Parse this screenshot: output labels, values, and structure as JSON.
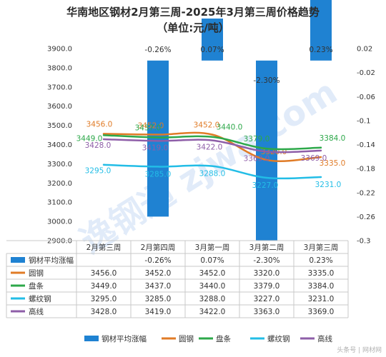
{
  "title": "华南地区钢材2月第三周-2025年3月第三周价格趋势",
  "subtitle": "（单位:元/吨）",
  "footer": "头条号 | 网材网",
  "watermark": "逸钢通 zjwa.com",
  "colors": {
    "avg_change": "#1f82d2",
    "round_steel": "#e07b26",
    "wire_coil": "#2da84a",
    "rebar": "#22bde6",
    "high_wire": "#8e5ea8",
    "text": "#333333"
  },
  "chart_data": {
    "type": "line",
    "categories": [
      "2月第三周",
      "2月第四周",
      "3月第一周",
      "3月第二周",
      "3月第三周"
    ],
    "y_left": {
      "ylim": [
        2900,
        3900
      ],
      "ticks": [
        "2900.0",
        "3000.0",
        "3100.0",
        "3200.0",
        "3300.0",
        "3400.0",
        "3500.0",
        "3600.0",
        "3700.0",
        "3800.0",
        "3900.0"
      ]
    },
    "y_right": {
      "ylim": [
        -0.3,
        0.02
      ],
      "ticks": [
        "-0.3",
        "-0.26",
        "-0.22",
        "-0.18",
        "-0.14",
        "-0.1",
        "-0.06",
        "-0.02",
        "0.02"
      ]
    },
    "bar_series": {
      "name": "钢材平均涨幅",
      "values": [
        null,
        -0.26,
        0.07,
        -2.3,
        0.23
      ],
      "labels": [
        "",
        "-0.26%",
        "0.07%",
        "-2.30%",
        "0.23%"
      ]
    },
    "series": [
      {
        "name": "圆钢",
        "color_key": "round_steel",
        "values": [
          3456.0,
          3452.0,
          3452.0,
          3320.0,
          3335.0
        ],
        "labels": [
          "3456.0",
          "3452.0",
          "3452.0",
          "3320.0",
          "3335.0"
        ]
      },
      {
        "name": "盘条",
        "color_key": "wire_coil",
        "values": [
          3449.0,
          3437.0,
          3440.0,
          3379.0,
          3384.0
        ],
        "labels": [
          "3449.0",
          "3437.0",
          "3440.0",
          "3379.0",
          "3384.0"
        ]
      },
      {
        "name": "螺纹钢",
        "color_key": "rebar",
        "values": [
          3295.0,
          3285.0,
          3288.0,
          3227.0,
          3231.0
        ],
        "labels": [
          "3295.0",
          "3285.0",
          "3288.0",
          "3227.0",
          "3231.0"
        ]
      },
      {
        "name": "高线",
        "color_key": "high_wire",
        "values": [
          3428.0,
          3419.0,
          3422.0,
          3363.0,
          3369.0
        ],
        "labels": [
          "3428.0",
          "3419.0",
          "3422.0",
          "3363.0",
          "3369.0"
        ]
      }
    ],
    "table_rows": [
      {
        "name": "钢材平均涨幅",
        "cells": [
          "",
          "-0.26%",
          "0.07%",
          "-2.30%",
          "0.23%"
        ]
      },
      {
        "name": "圆钢",
        "cells": [
          "3456.0",
          "3452.0",
          "3452.0",
          "3320.0",
          "3335.0"
        ]
      },
      {
        "name": "盘条",
        "cells": [
          "3449.0",
          "3437.0",
          "3440.0",
          "3379.0",
          "3384.0"
        ]
      },
      {
        "name": "螺纹钢",
        "cells": [
          "3295.0",
          "3285.0",
          "3288.0",
          "3227.0",
          "3231.0"
        ]
      },
      {
        "name": "高线",
        "cells": [
          "3428.0",
          "3419.0",
          "3422.0",
          "3363.0",
          "3369.0"
        ]
      }
    ],
    "legend": [
      "钢材平均涨幅",
      "圆钢",
      "盘条",
      "螺纹钢",
      "高线"
    ],
    "legend_position": "bottom",
    "grid": false
  }
}
